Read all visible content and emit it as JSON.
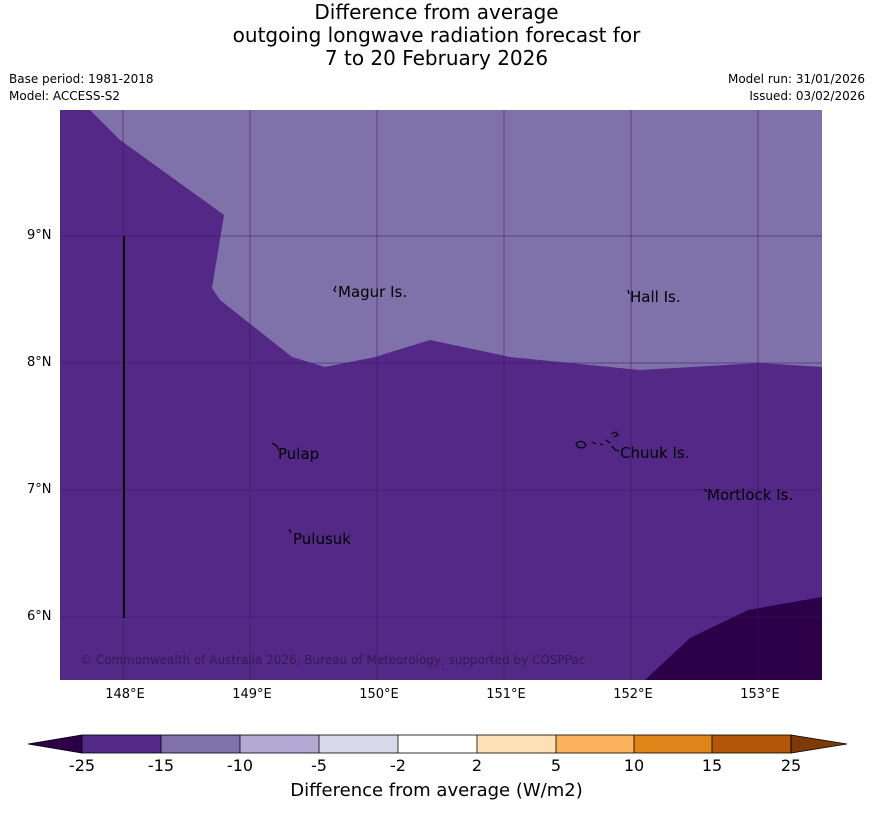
{
  "title": {
    "line1": "Difference from average",
    "line2": "outgoing longwave radiation forecast for",
    "line3": "7 to 20 February 2026"
  },
  "meta": {
    "base_period": "Base period: 1981-2018",
    "model": "Model: ACCESS-S2",
    "model_run": "Model run: 31/01/2026",
    "issued": "Issued: 03/02/2026"
  },
  "map": {
    "lat_ticks": [
      "9°N",
      "8°N",
      "7°N",
      "6°N"
    ],
    "lon_ticks": [
      "148°E",
      "149°E",
      "150°E",
      "151°E",
      "152°E",
      "153°E"
    ],
    "places": [
      "Magur Is.",
      "Hall Is.",
      "Pulap",
      "Chuuk Is.",
      "Mortlock Is.",
      "Pulusuk"
    ],
    "copyright": "© Commonwealth of Australia 2026, Bureau of Meteorology, supported by COSPPac",
    "colors": {
      "band_-25_-15": "#532886",
      "band_-15_-10": "#7f72aa",
      "below_-25": "#2b0048"
    }
  },
  "colorbar": {
    "tick_labels": [
      "-25",
      "-15",
      "-10",
      "-5",
      "-2",
      "2",
      "5",
      "10",
      "15",
      "25"
    ],
    "colors": [
      "#2b0048",
      "#532886",
      "#7f72aa",
      "#b2aad3",
      "#d9d9ec",
      "#ffffff",
      "#fde0b5",
      "#fbb25e",
      "#e08319",
      "#b15707",
      "#7f3b07"
    ],
    "label": "Difference from average (W/m2)"
  }
}
